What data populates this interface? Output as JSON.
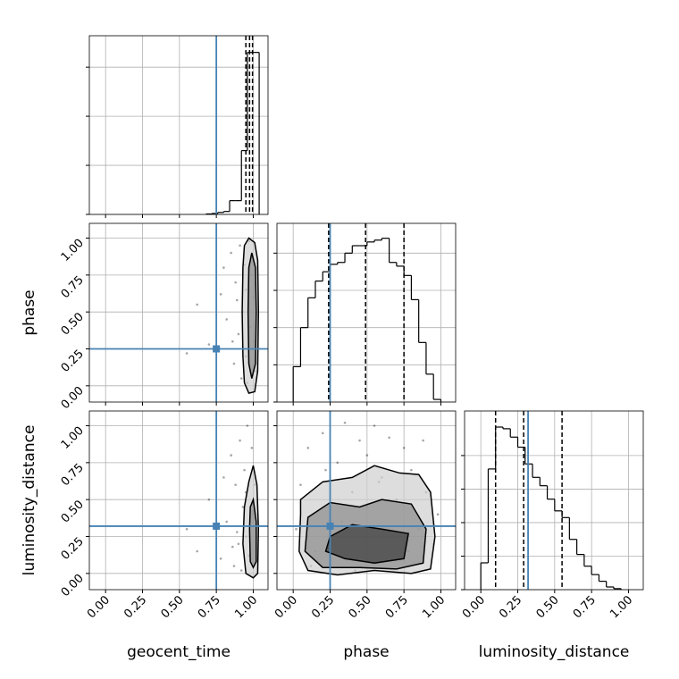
{
  "chart_data": {
    "type": "corner",
    "parameters": [
      "geocent_time",
      "phase",
      "luminosity_distance"
    ],
    "truths": [
      0.75,
      0.25,
      0.32
    ],
    "truth_color": "#4682b4",
    "xlim": [
      -0.11,
      1.1
    ],
    "ticks": [
      {
        "value": 0,
        "label": "0.00"
      },
      {
        "value": 0.25,
        "label": "0.25"
      },
      {
        "value": 0.5,
        "label": "0.50"
      },
      {
        "value": 0.75,
        "label": "0.75"
      },
      {
        "value": 1,
        "label": "1.00"
      }
    ],
    "grid": true,
    "histograms": [
      {
        "bins": [
          0.68,
          0.72,
          0.76,
          0.8,
          0.84,
          0.88,
          0.92,
          0.96,
          1.0,
          1.04
        ],
        "counts": [
          0.01,
          0.02,
          0.04,
          0.06,
          0.28,
          0.28,
          1.3,
          3.3,
          3.3
        ],
        "ylim": [
          0,
          3.64
        ],
        "yticks": [
          0,
          1,
          2,
          3
        ],
        "quantiles": [
          0.95,
          0.975,
          0.995
        ]
      },
      {
        "bins": [
          0,
          0.05,
          0.1,
          0.15,
          0.2,
          0.25,
          0.3,
          0.35,
          0.4,
          0.45,
          0.5,
          0.55,
          0.6,
          0.65,
          0.7,
          0.75,
          0.8,
          0.85,
          0.9,
          0.95,
          1.0
        ],
        "counts": [
          0.95,
          2.0,
          2.8,
          3.25,
          3.5,
          3.7,
          3.75,
          4.0,
          4.2,
          4.2,
          4.3,
          4.35,
          4.4,
          3.75,
          3.65,
          3.4,
          2.75,
          1.6,
          0.75,
          0.07
        ],
        "ylim": [
          0,
          4.8
        ],
        "yticks": [
          0,
          1,
          2,
          3,
          4
        ],
        "quantiles": [
          0.24,
          0.49,
          0.75
        ]
      },
      {
        "bins": [
          0,
          0.05,
          0.1,
          0.15,
          0.2,
          0.25,
          0.3,
          0.35,
          0.4,
          0.45,
          0.5,
          0.55,
          0.6,
          0.65,
          0.7,
          0.75,
          0.8,
          0.85,
          0.9,
          0.95
        ],
        "counts": [
          0.8,
          3.6,
          4.85,
          4.8,
          4.55,
          4.25,
          3.75,
          3.35,
          3.1,
          2.7,
          2.35,
          2.15,
          1.5,
          1.05,
          0.7,
          0.45,
          0.25,
          0.08,
          0.03
        ],
        "ylim": [
          0,
          5.33
        ],
        "yticks": [
          0,
          1,
          2,
          3,
          4
        ],
        "quantiles": [
          0.1,
          0.29,
          0.55
        ]
      }
    ],
    "pairs": [
      {
        "x": 0,
        "y": 1,
        "points_x": [
          0.55,
          0.62,
          0.7,
          0.78,
          0.82,
          0.85,
          0.87,
          0.88,
          0.9,
          0.91,
          0.92,
          0.93,
          0.94,
          0.95,
          0.95,
          0.96,
          0.97,
          0.98,
          0.99,
          1.0,
          1.01,
          1.02,
          0.89,
          0.86,
          0.8
        ],
        "points_y": [
          0.22,
          0.55,
          0.28,
          0.62,
          0.45,
          0.9,
          0.15,
          0.7,
          0.35,
          0.95,
          0.05,
          0.5,
          0.82,
          0.2,
          0.65,
          0.02,
          0.98,
          0.4,
          0.75,
          0.6,
          0.3,
          0.1,
          0.58,
          0.3,
          0.8
        ],
        "contours": [
          {
            "x": [
              0.97,
              1.01,
              1.03,
              1.035,
              1.03,
              1.01,
              0.97,
              0.94,
              0.93,
              0.925,
              0.93,
              0.94
            ],
            "y": [
              1.0,
              0.97,
              0.85,
              0.5,
              0.1,
              -0.04,
              -0.05,
              0.02,
              0.2,
              0.5,
              0.8,
              0.95
            ]
          },
          {
            "x": [
              0.99,
              1.015,
              1.02,
              1.015,
              0.99,
              0.97,
              0.965,
              0.97
            ],
            "y": [
              0.9,
              0.8,
              0.5,
              0.15,
              0.05,
              0.15,
              0.5,
              0.8
            ]
          }
        ]
      },
      {
        "x": 0,
        "y": 2,
        "points_x": [
          0.55,
          0.62,
          0.7,
          0.78,
          0.82,
          0.85,
          0.87,
          0.88,
          0.9,
          0.91,
          0.92,
          0.93,
          0.94,
          0.95,
          0.95,
          0.96,
          0.97,
          0.98,
          0.99,
          1.0,
          1.01,
          1.02,
          0.89,
          0.86,
          0.8
        ],
        "points_y": [
          0.3,
          0.15,
          0.5,
          0.1,
          0.35,
          0.8,
          0.05,
          0.6,
          0.2,
          0.9,
          0.02,
          0.45,
          0.7,
          0.25,
          0.55,
          1.0,
          0.12,
          0.38,
          0.85,
          0.4,
          0.6,
          0.08,
          0.28,
          0.18,
          0.65
        ],
        "contours": [
          {
            "x": [
              1.0,
              1.025,
              1.035,
              1.03,
              1.0,
              0.95,
              0.93,
              0.94,
              0.97
            ],
            "y": [
              0.73,
              0.6,
              0.3,
              0.0,
              -0.03,
              0.0,
              0.2,
              0.45,
              0.62
            ]
          },
          {
            "x": [
              1.0,
              1.02,
              1.02,
              1.0,
              0.98,
              0.975,
              0.98
            ],
            "y": [
              0.5,
              0.35,
              0.08,
              0.04,
              0.08,
              0.3,
              0.45
            ]
          }
        ]
      },
      {
        "x": 1,
        "y": 2,
        "points_x": [
          0.02,
          0.05,
          0.1,
          0.15,
          0.2,
          0.25,
          0.3,
          0.35,
          0.4,
          0.45,
          0.5,
          0.55,
          0.6,
          0.65,
          0.7,
          0.75,
          0.8,
          0.85,
          0.9,
          0.95,
          0.98,
          0.12,
          0.42,
          0.58,
          0.88,
          0.33,
          0.67,
          0.22,
          0.5,
          0.78
        ],
        "points_y": [
          0.3,
          0.6,
          0.85,
          0.15,
          0.95,
          0.45,
          0.75,
          1.02,
          0.55,
          0.9,
          0.8,
          1.0,
          0.65,
          0.92,
          0.5,
          0.85,
          0.7,
          0.3,
          0.55,
          0.2,
          0.4,
          0.05,
          0.02,
          0.62,
          0.9,
          0.35,
          0.25,
          0.7,
          0.45,
          0.15
        ],
        "contours": [
          {
            "x": [
              0.05,
              0.2,
              0.4,
              0.55,
              0.72,
              0.85,
              0.93,
              0.96,
              0.93,
              0.8,
              0.55,
              0.3,
              0.1,
              0.04,
              0.05
            ],
            "y": [
              0.5,
              0.62,
              0.65,
              0.73,
              0.68,
              0.67,
              0.55,
              0.25,
              0.03,
              0.0,
              0.02,
              -0.01,
              0.02,
              0.15,
              0.4
            ]
          },
          {
            "x": [
              0.1,
              0.25,
              0.45,
              0.6,
              0.8,
              0.9,
              0.88,
              0.7,
              0.45,
              0.2,
              0.08
            ],
            "y": [
              0.38,
              0.48,
              0.45,
              0.5,
              0.47,
              0.3,
              0.07,
              0.03,
              0.04,
              0.04,
              0.15
            ]
          },
          {
            "x": [
              0.25,
              0.4,
              0.6,
              0.78,
              0.75,
              0.55,
              0.35,
              0.22
            ],
            "y": [
              0.25,
              0.33,
              0.3,
              0.27,
              0.1,
              0.07,
              0.1,
              0.15
            ]
          }
        ]
      }
    ]
  }
}
